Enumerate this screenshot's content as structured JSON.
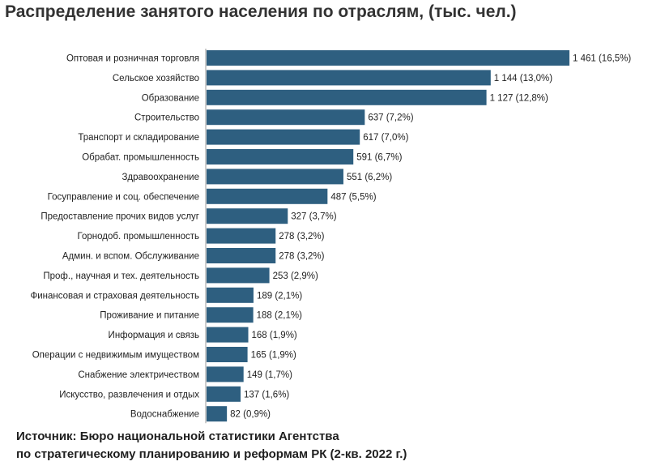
{
  "title": "Распределение занятого населения по отраслям, (тыс. чел.)",
  "source": {
    "line1": "Источник: Бюро национальной статистики Агентства",
    "line2": "по стратегическому планированию и реформам РК (2-кв. 2022 г.)"
  },
  "chart_data": {
    "type": "bar",
    "orientation": "horizontal",
    "title": "Распределение занятого населения по отраслям, (тыс. чел.)",
    "bar_color": "#2e5f80",
    "grid": false,
    "categories": [
      "Оптовая и розничная торговля",
      "Сельское хозяйство",
      "Образование",
      "Строительство",
      "Транспорт и складирование",
      "Обрабат. промышленность",
      "Здравоохранение",
      "Госуправление и соц. обеспечение",
      "Предоставление прочих видов услуг",
      "Горнодоб. промышленность",
      "Админ. и вспом. Обслуживание",
      "Проф., научная и тех. деятельность",
      "Финансовая и страховая деятельность",
      "Проживание и питание",
      "Информация и связь",
      "Операции с недвижимым имуществом",
      "Снабжение электричеством",
      "Искусство, развлечения и отдых",
      "Водоснабжение"
    ],
    "values": [
      1461,
      1144,
      1127,
      637,
      617,
      591,
      551,
      487,
      327,
      278,
      278,
      253,
      189,
      188,
      168,
      165,
      149,
      137,
      82
    ],
    "value_labels": [
      "1 461 (16,5%)",
      "1 144 (13,0%)",
      "1 127 (12,8%)",
      "637 (7,2%)",
      "617 (7,0%)",
      "591 (6,7%)",
      "551 (6,2%)",
      "487 (5,5%)",
      "327 (3,7%)",
      "278 (3,2%)",
      "278 (3,2%)",
      "253 (2,9%)",
      "189 (2,1%)",
      "188 (2,1%)",
      "168 (1,9%)",
      "165 (1,9%)",
      "149 (1,7%)",
      "137 (1,6%)",
      "82 (0,9%)"
    ]
  }
}
